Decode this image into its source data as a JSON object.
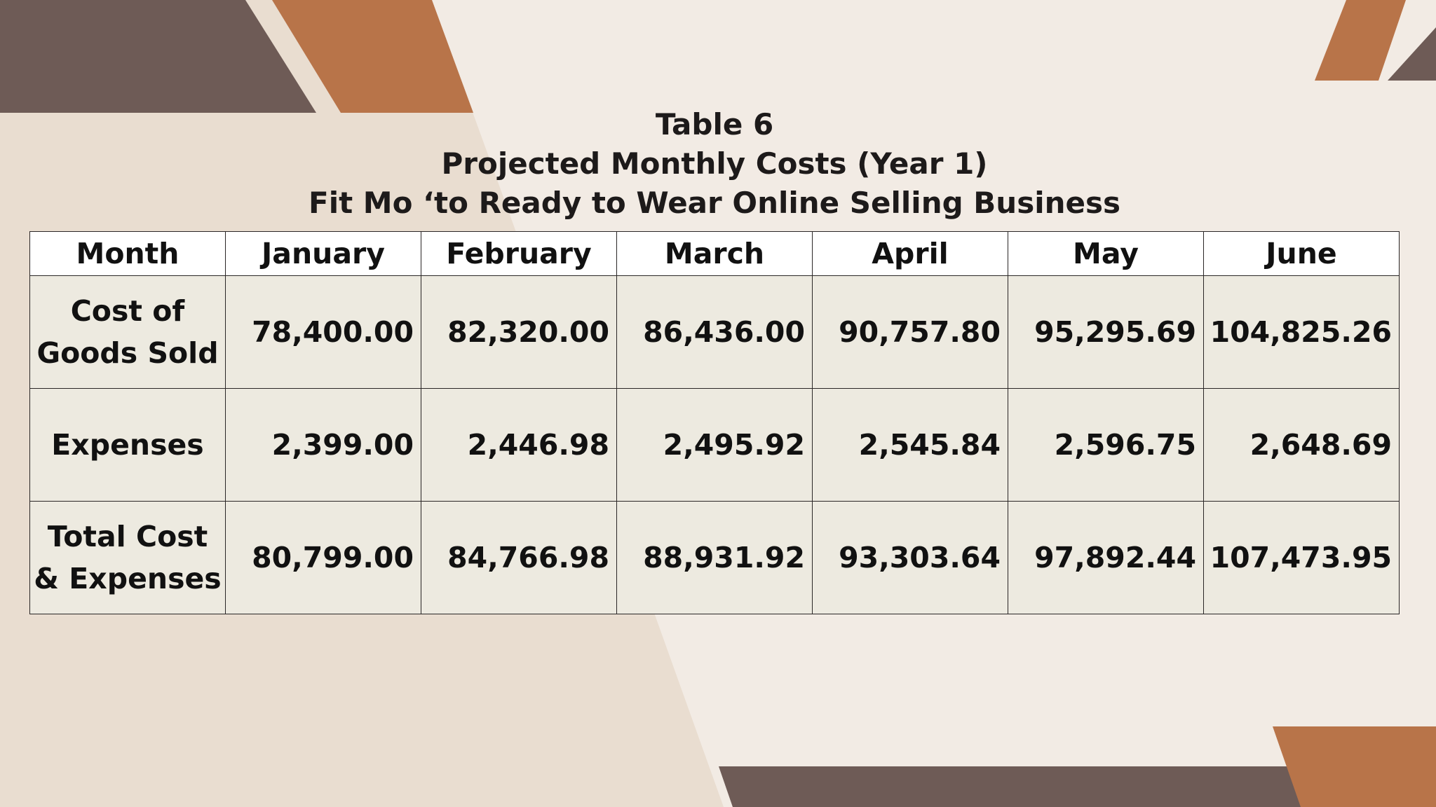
{
  "title": {
    "lines": [
      "Table 6",
      "Projected Monthly Costs (Year 1)",
      "Fit Mo ‘to Ready to Wear Online Selling Business"
    ]
  },
  "table": {
    "header": [
      "Month",
      "January",
      "February",
      "March",
      "April",
      "May",
      "June"
    ],
    "rows": [
      {
        "label": [
          "Cost of",
          "Goods Sold"
        ],
        "cells": [
          "78,400.00",
          "82,320.00",
          "86,436.00",
          "90,757.80",
          "95,295.69",
          "104,825.26"
        ]
      },
      {
        "label": [
          "Expenses"
        ],
        "cells": [
          "2,399.00",
          "2,446.98",
          "2,495.92",
          "2,545.84",
          "2,596.75",
          "2,648.69"
        ]
      },
      {
        "label": [
          "Total Cost",
          "& Expenses"
        ],
        "cells": [
          "80,799.00",
          "84,766.98",
          "88,931.92",
          "93,303.64",
          "97,892.44",
          "107,473.95"
        ]
      }
    ]
  }
}
